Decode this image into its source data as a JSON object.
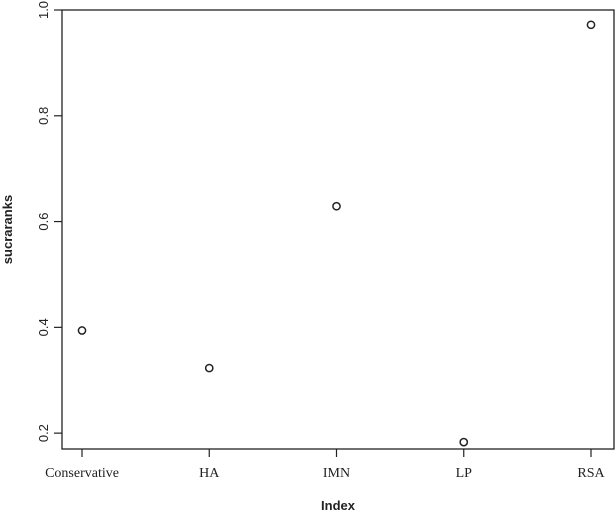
{
  "chart_data": {
    "type": "scatter",
    "categories": [
      "Conservative",
      "HA",
      "IMN",
      "LP",
      "RSA"
    ],
    "values": [
      0.394,
      0.323,
      0.629,
      0.183,
      0.972
    ],
    "xlabel": "Index",
    "ylabel": "sucraranks",
    "ylim": [
      0.17,
      1.0
    ],
    "yticks": [
      "0.2",
      "0.4",
      "0.6",
      "0.8",
      "1.0"
    ],
    "grid": false,
    "marker": "open-circle",
    "colors": {
      "axis": "#222222",
      "marker": "#222222",
      "background": "#ffffff"
    }
  }
}
